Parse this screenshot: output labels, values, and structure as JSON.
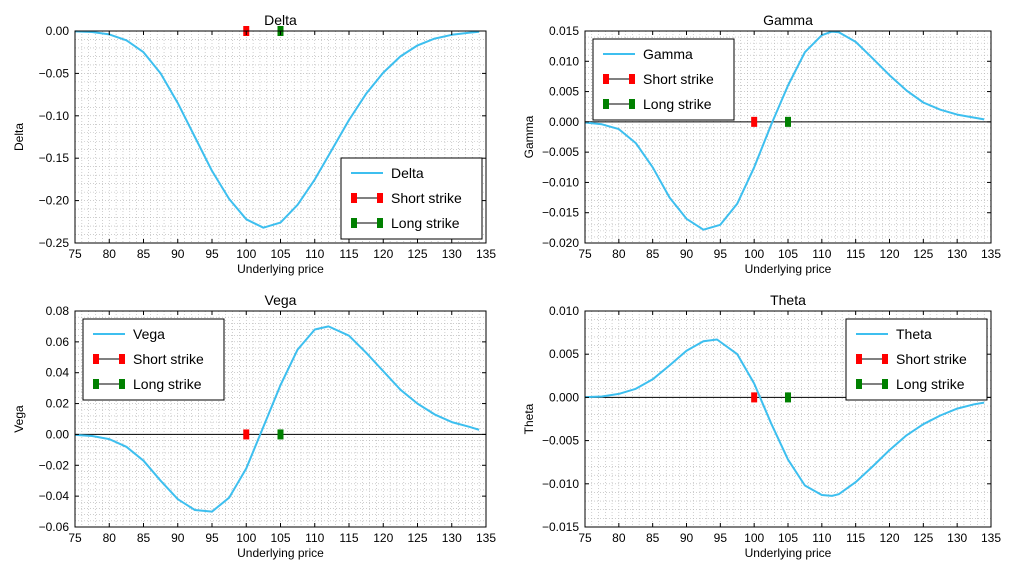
{
  "figure": {
    "colors": {
      "curve": "#3dbfef",
      "short_strike": "#ff0000",
      "long_strike": "#008000",
      "zero_line": "#000000",
      "grid": "#b0b0b0"
    }
  },
  "chart_data": [
    {
      "id": "delta",
      "type": "line",
      "title": "Delta",
      "xlabel": "Underlying price",
      "ylabel": "Delta",
      "xlim": [
        75,
        135
      ],
      "ylim": [
        -0.25,
        0.0
      ],
      "xticks": [
        75,
        80,
        85,
        90,
        95,
        100,
        105,
        110,
        115,
        120,
        125,
        130,
        135
      ],
      "xtick_labels": [
        "75",
        "80",
        "85",
        "90",
        "95",
        "100",
        "105",
        "110",
        "115",
        "120",
        "125",
        "130",
        "135"
      ],
      "yticks": [
        -0.25,
        -0.2,
        -0.15,
        -0.1,
        -0.05,
        0.0
      ],
      "ytick_labels": [
        "−0.25",
        "−0.20",
        "−0.15",
        "−0.10",
        "−0.05",
        "0.00"
      ],
      "grid": true,
      "zero_line": false,
      "legend_position": "lower-right",
      "legend": [
        "Delta",
        "Short strike",
        "Long strike"
      ],
      "series": [
        {
          "name": "Delta",
          "x": [
            75,
            77.5,
            80,
            82.5,
            85,
            87.5,
            90,
            92.5,
            95,
            97.5,
            100,
            102.5,
            105,
            107.5,
            110,
            112.5,
            115,
            117.5,
            120,
            122.5,
            125,
            127.5,
            130,
            132.5,
            134
          ],
          "y": [
            -0.0005,
            -0.0012,
            -0.004,
            -0.011,
            -0.025,
            -0.05,
            -0.085,
            -0.125,
            -0.165,
            -0.198,
            -0.222,
            -0.232,
            -0.226,
            -0.205,
            -0.175,
            -0.14,
            -0.105,
            -0.074,
            -0.049,
            -0.03,
            -0.017,
            -0.009,
            -0.0045,
            -0.002,
            -0.001
          ]
        }
      ],
      "markers": [
        {
          "name": "Short strike",
          "x": 100,
          "y": 0.0
        },
        {
          "name": "Long strike",
          "x": 105,
          "y": 0.0
        }
      ]
    },
    {
      "id": "gamma",
      "type": "line",
      "title": "Gamma",
      "xlabel": "Underlying price",
      "ylabel": "Gamma",
      "xlim": [
        75,
        135
      ],
      "ylim": [
        -0.02,
        0.015
      ],
      "xticks": [
        75,
        80,
        85,
        90,
        95,
        100,
        105,
        110,
        115,
        120,
        125,
        130,
        135
      ],
      "xtick_labels": [
        "75",
        "80",
        "85",
        "90",
        "95",
        "100",
        "105",
        "110",
        "115",
        "120",
        "125",
        "130",
        "135"
      ],
      "yticks": [
        -0.02,
        -0.015,
        -0.01,
        -0.005,
        0.0,
        0.005,
        0.01,
        0.015
      ],
      "ytick_labels": [
        "−0.020",
        "−0.015",
        "−0.010",
        "−0.005",
        "0.000",
        "0.005",
        "0.010",
        "0.015"
      ],
      "grid": true,
      "zero_line": true,
      "legend_position": "upper-left",
      "legend": [
        "Gamma",
        "Short strike",
        "Long strike"
      ],
      "series": [
        {
          "name": "Gamma",
          "x": [
            75,
            77.5,
            80,
            82.5,
            85,
            87.5,
            90,
            92.5,
            95,
            97.5,
            100,
            102.5,
            105,
            107.5,
            110,
            111.5,
            112.5,
            115,
            117.5,
            120,
            122.5,
            125,
            127.5,
            130,
            132.5,
            134
          ],
          "y": [
            -0.0001,
            -0.0004,
            -0.0012,
            -0.0035,
            -0.0075,
            -0.0125,
            -0.016,
            -0.0178,
            -0.017,
            -0.0135,
            -0.0075,
            -0.0005,
            0.006,
            0.0115,
            0.0143,
            0.0149,
            0.0148,
            0.0132,
            0.0105,
            0.0077,
            0.0052,
            0.0032,
            0.002,
            0.0012,
            0.0007,
            0.0004
          ]
        }
      ],
      "markers": [
        {
          "name": "Short strike",
          "x": 100,
          "y": 0.0
        },
        {
          "name": "Long strike",
          "x": 105,
          "y": 0.0
        }
      ]
    },
    {
      "id": "vega",
      "type": "line",
      "title": "Vega",
      "xlabel": "Underlying price",
      "ylabel": "Vega",
      "xlim": [
        75,
        135
      ],
      "ylim": [
        -0.06,
        0.08
      ],
      "xticks": [
        75,
        80,
        85,
        90,
        95,
        100,
        105,
        110,
        115,
        120,
        125,
        130,
        135
      ],
      "xtick_labels": [
        "75",
        "80",
        "85",
        "90",
        "95",
        "100",
        "105",
        "110",
        "115",
        "120",
        "125",
        "130",
        "135"
      ],
      "yticks": [
        -0.06,
        -0.04,
        -0.02,
        0.0,
        0.02,
        0.04,
        0.06,
        0.08
      ],
      "ytick_labels": [
        "−0.06",
        "−0.04",
        "−0.02",
        "0.00",
        "0.02",
        "0.04",
        "0.06",
        "0.08"
      ],
      "grid": true,
      "zero_line": true,
      "legend_position": "upper-left",
      "legend": [
        "Vega",
        "Short strike",
        "Long strike"
      ],
      "series": [
        {
          "name": "Vega",
          "x": [
            75,
            77.5,
            80,
            82.5,
            85,
            87.5,
            90,
            92.5,
            95,
            97.5,
            100,
            102.5,
            105,
            107.5,
            110,
            112,
            115,
            117.5,
            120,
            122.5,
            125,
            127.5,
            130,
            132.5,
            134
          ],
          "y": [
            -0.0003,
            -0.001,
            -0.003,
            -0.008,
            -0.017,
            -0.03,
            -0.042,
            -0.049,
            -0.05,
            -0.041,
            -0.022,
            0.005,
            0.032,
            0.055,
            0.068,
            0.07,
            0.064,
            0.053,
            0.041,
            0.029,
            0.02,
            0.013,
            0.008,
            0.005,
            0.003
          ]
        }
      ],
      "markers": [
        {
          "name": "Short strike",
          "x": 100,
          "y": 0.0
        },
        {
          "name": "Long strike",
          "x": 105,
          "y": 0.0
        }
      ]
    },
    {
      "id": "theta",
      "type": "line",
      "title": "Theta",
      "xlabel": "Underlying price",
      "ylabel": "Theta",
      "xlim": [
        75,
        135
      ],
      "ylim": [
        -0.015,
        0.01
      ],
      "xticks": [
        75,
        80,
        85,
        90,
        95,
        100,
        105,
        110,
        115,
        120,
        125,
        130,
        135
      ],
      "xtick_labels": [
        "75",
        "80",
        "85",
        "90",
        "95",
        "100",
        "105",
        "110",
        "115",
        "120",
        "125",
        "130",
        "135"
      ],
      "yticks": [
        -0.015,
        -0.01,
        -0.005,
        0.0,
        0.005,
        0.01
      ],
      "ytick_labels": [
        "−0.015",
        "−0.010",
        "−0.005",
        "0.000",
        "0.005",
        "0.010"
      ],
      "grid": true,
      "zero_line": true,
      "legend_position": "upper-right",
      "legend": [
        "Theta",
        "Short strike",
        "Long strike"
      ],
      "series": [
        {
          "name": "Theta",
          "x": [
            75,
            77.5,
            80,
            82.5,
            85,
            87.5,
            90,
            92.5,
            94.5,
            97.5,
            100,
            102.5,
            105,
            107.5,
            110,
            111.5,
            112.5,
            115,
            117.5,
            120,
            122.5,
            125,
            127.5,
            130,
            132.5,
            134
          ],
          "y": [
            3e-05,
            0.0001,
            0.0004,
            0.001,
            0.0021,
            0.0037,
            0.0054,
            0.0065,
            0.0067,
            0.005,
            0.0016,
            -0.003,
            -0.0072,
            -0.0102,
            -0.0113,
            -0.0114,
            -0.0112,
            -0.0098,
            -0.008,
            -0.0061,
            -0.0044,
            -0.0031,
            -0.0021,
            -0.0013,
            -0.0008,
            -0.0006
          ]
        }
      ],
      "markers": [
        {
          "name": "Short strike",
          "x": 100,
          "y": 0.0
        },
        {
          "name": "Long strike",
          "x": 105,
          "y": 0.0
        }
      ]
    }
  ]
}
